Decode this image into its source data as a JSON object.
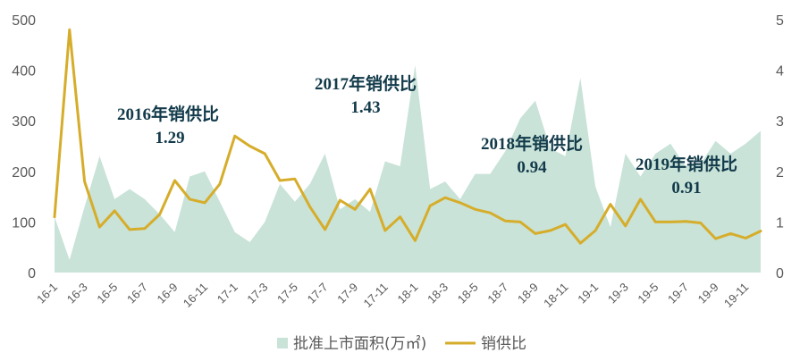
{
  "colors": {
    "area": "#c9e3d8",
    "line": "#d6ad2b",
    "annotation": "#123a4a",
    "axis_text": "#595959"
  },
  "chart_data": {
    "type": "area+line",
    "categories": [
      "16-1",
      "16-2",
      "16-3",
      "16-4",
      "16-5",
      "16-6",
      "16-7",
      "16-8",
      "16-9",
      "16-10",
      "16-11",
      "16-12",
      "17-1",
      "17-2",
      "17-3",
      "17-4",
      "17-5",
      "17-6",
      "17-7",
      "17-8",
      "17-9",
      "17-10",
      "17-11",
      "17-12",
      "18-1",
      "18-2",
      "18-3",
      "18-4",
      "18-5",
      "18-6",
      "18-7",
      "18-8",
      "18-9",
      "18-10",
      "18-11",
      "18-12",
      "19-1",
      "19-2",
      "19-3",
      "19-4",
      "19-5",
      "19-6",
      "19-7",
      "19-8",
      "19-9",
      "19-10",
      "19-11",
      "19-12"
    ],
    "xtick_labels": [
      "16-1",
      "16-3",
      "16-5",
      "16-7",
      "16-9",
      "16-11",
      "17-1",
      "17-3",
      "17-5",
      "17-7",
      "17-9",
      "17-11",
      "18-1",
      "18-3",
      "18-5",
      "18-7",
      "18-9",
      "18-11",
      "19-1",
      "19-3",
      "19-5",
      "19-7",
      "19-9",
      "19-11"
    ],
    "series": [
      {
        "name": "批准上市面积(万㎡)",
        "axis": "left",
        "kind": "area",
        "values": [
          110,
          25,
          130,
          230,
          145,
          165,
          145,
          115,
          80,
          190,
          200,
          140,
          80,
          60,
          100,
          175,
          140,
          175,
          235,
          125,
          145,
          120,
          220,
          210,
          410,
          165,
          180,
          145,
          195,
          195,
          240,
          305,
          340,
          245,
          230,
          385,
          170,
          90,
          235,
          190,
          235,
          255,
          210,
          215,
          260,
          235,
          255,
          280
        ]
      },
      {
        "name": "销供比",
        "axis": "right",
        "kind": "line",
        "values": [
          1.1,
          4.8,
          1.8,
          0.9,
          1.22,
          0.85,
          0.87,
          1.15,
          1.82,
          1.45,
          1.38,
          1.75,
          2.7,
          2.5,
          2.35,
          1.82,
          1.85,
          1.3,
          0.85,
          1.43,
          1.25,
          1.65,
          0.83,
          1.1,
          0.63,
          1.32,
          1.48,
          1.38,
          1.25,
          1.18,
          1.02,
          1.0,
          0.77,
          0.83,
          0.95,
          0.58,
          0.83,
          1.35,
          0.92,
          1.45,
          1.0,
          1.0,
          1.01,
          0.98,
          0.67,
          0.77,
          0.68,
          0.82
        ]
      }
    ],
    "ylim_left": [
      0,
      500
    ],
    "yticks_left": [
      0,
      100,
      200,
      300,
      400,
      500
    ],
    "ylim_right": [
      0,
      5
    ],
    "yticks_right": [
      0,
      1,
      2,
      3,
      4,
      5
    ],
    "grid": false,
    "legend_position": "bottom-center",
    "annotations": [
      {
        "year": "2016年销供比",
        "value": "1.29"
      },
      {
        "year": "2017年销供比",
        "value": "1.43"
      },
      {
        "year": "2018年销供比",
        "value": "0.94"
      },
      {
        "year": "2019年销供比",
        "value": "0.91"
      }
    ]
  }
}
